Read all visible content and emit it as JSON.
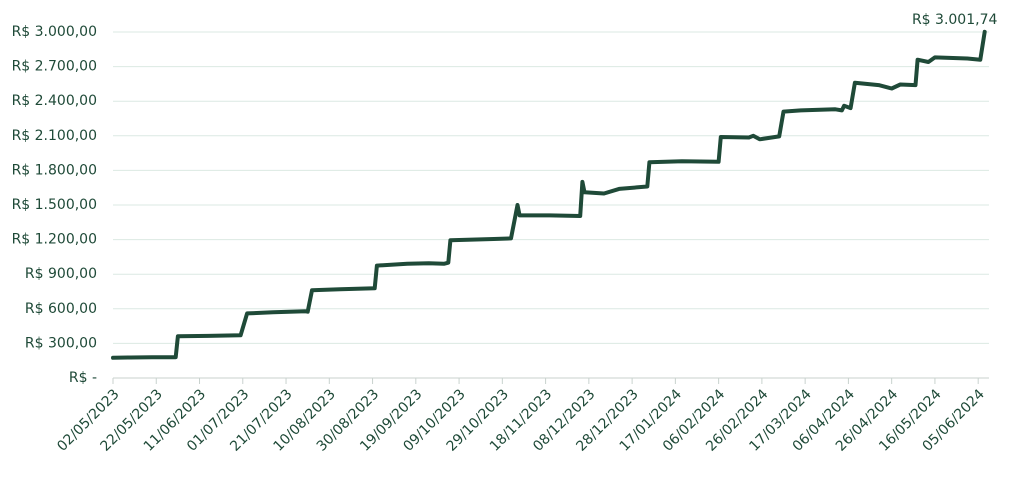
{
  "chart_data": {
    "type": "line",
    "x": [
      "2023-05-02",
      "2023-05-10",
      "2023-05-20",
      "2023-05-31",
      "2023-06-01",
      "2023-06-15",
      "2023-06-30",
      "2023-07-03",
      "2023-07-15",
      "2023-07-30",
      "2023-07-31",
      "2023-08-02",
      "2023-08-15",
      "2023-08-31",
      "2023-09-01",
      "2023-09-15",
      "2023-09-25",
      "2023-10-02",
      "2023-10-04",
      "2023-10-05",
      "2023-10-15",
      "2023-10-25",
      "2023-11-02",
      "2023-11-05",
      "2023-11-06",
      "2023-11-20",
      "2023-12-04",
      "2023-12-05",
      "2023-12-06",
      "2023-12-15",
      "2023-12-22",
      "2024-01-04",
      "2024-01-05",
      "2024-01-20",
      "2024-02-06",
      "2024-02-07",
      "2024-02-20",
      "2024-02-22",
      "2024-02-25",
      "2024-03-05",
      "2024-03-07",
      "2024-03-15",
      "2024-03-31",
      "2024-04-03",
      "2024-04-04",
      "2024-04-07",
      "2024-04-09",
      "2024-04-20",
      "2024-04-26",
      "2024-04-30",
      "2024-05-07",
      "2024-05-08",
      "2024-05-13",
      "2024-05-16",
      "2024-05-31",
      "2024-06-06",
      "2024-06-08"
    ],
    "values": [
      175,
      178,
      180,
      180,
      362,
      365,
      370,
      560,
      570,
      578,
      575,
      760,
      770,
      778,
      975,
      990,
      995,
      990,
      1000,
      1195,
      1200,
      1205,
      1210,
      1500,
      1410,
      1410,
      1405,
      1700,
      1610,
      1600,
      1640,
      1660,
      1870,
      1880,
      1875,
      2090,
      2085,
      2100,
      2070,
      2095,
      2310,
      2320,
      2330,
      2320,
      2360,
      2340,
      2560,
      2540,
      2510,
      2545,
      2540,
      2760,
      2740,
      2780,
      2770,
      2760,
      3001.74
    ],
    "color": "#1f4a38",
    "annotation": "R$ 3.001,74",
    "xlim": [
      "2023-05-02",
      "2024-06-10"
    ],
    "xticks": [
      {
        "value": "2023-05-02",
        "label": "02/05/2023"
      },
      {
        "value": "2023-05-22",
        "label": "22/05/2023"
      },
      {
        "value": "2023-06-11",
        "label": "11/06/2023"
      },
      {
        "value": "2023-07-01",
        "label": "01/07/2023"
      },
      {
        "value": "2023-07-21",
        "label": "21/07/2023"
      },
      {
        "value": "2023-08-10",
        "label": "10/08/2023"
      },
      {
        "value": "2023-08-30",
        "label": "30/08/2023"
      },
      {
        "value": "2023-09-19",
        "label": "19/09/2023"
      },
      {
        "value": "2023-10-09",
        "label": "09/10/2023"
      },
      {
        "value": "2023-10-29",
        "label": "29/10/2023"
      },
      {
        "value": "2023-11-18",
        "label": "18/11/2023"
      },
      {
        "value": "2023-12-08",
        "label": "08/12/2023"
      },
      {
        "value": "2023-12-28",
        "label": "28/12/2023"
      },
      {
        "value": "2024-01-17",
        "label": "17/01/2024"
      },
      {
        "value": "2024-02-06",
        "label": "06/02/2024"
      },
      {
        "value": "2024-02-26",
        "label": "26/02/2024"
      },
      {
        "value": "2024-03-17",
        "label": "17/03/2024"
      },
      {
        "value": "2024-04-06",
        "label": "06/04/2024"
      },
      {
        "value": "2024-04-26",
        "label": "26/04/2024"
      },
      {
        "value": "2024-05-16",
        "label": "16/05/2024"
      },
      {
        "value": "2024-06-05",
        "label": "05/06/2024"
      }
    ],
    "ylim": [
      0,
      3000
    ],
    "yticks": [
      {
        "value": 0,
        "label": "R$ -"
      },
      {
        "value": 300,
        "label": "R$ 300,00"
      },
      {
        "value": 600,
        "label": "R$ 600,00"
      },
      {
        "value": 900,
        "label": "R$ 900,00"
      },
      {
        "value": 1200,
        "label": "R$ 1.200,00"
      },
      {
        "value": 1500,
        "label": "R$ 1.500,00"
      },
      {
        "value": 1800,
        "label": "R$ 1.800,00"
      },
      {
        "value": 2100,
        "label": "R$ 2.100,00"
      },
      {
        "value": 2400,
        "label": "R$ 2.400,00"
      },
      {
        "value": 2700,
        "label": "R$ 2.700,00"
      },
      {
        "value": 3000,
        "label": "R$ 3.000,00"
      }
    ],
    "grid": true
  }
}
